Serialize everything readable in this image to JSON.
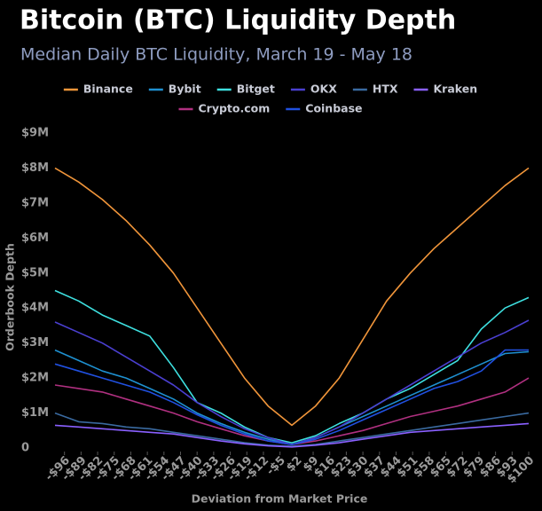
{
  "chart_data": {
    "type": "line",
    "title": "Bitcoin (BTC) Liquidity Depth",
    "subtitle": "Median Daily BTC Liquidity, March 19 - May 18",
    "x_label": "Deviation from Market Price",
    "y_label": "Orderbook Depth",
    "x": [
      -100,
      -90,
      -80,
      -70,
      -60,
      -50,
      -40,
      -30,
      -20,
      -10,
      0,
      10,
      20,
      30,
      40,
      50,
      60,
      70,
      80,
      90,
      100
    ],
    "series": [
      {
        "name": "Binance",
        "color": "#f0953a",
        "values": [
          8.0,
          7.6,
          7.1,
          6.5,
          5.8,
          5.0,
          4.0,
          3.0,
          2.0,
          1.2,
          0.65,
          1.2,
          2.0,
          3.1,
          4.2,
          5.0,
          5.7,
          6.3,
          6.9,
          7.5,
          8.0
        ]
      },
      {
        "name": "Bybit",
        "color": "#1e90d0",
        "values": [
          2.8,
          2.5,
          2.2,
          2.0,
          1.7,
          1.4,
          1.0,
          0.7,
          0.45,
          0.25,
          0.1,
          0.3,
          0.6,
          0.9,
          1.2,
          1.5,
          1.8,
          2.1,
          2.4,
          2.7,
          2.75
        ]
      },
      {
        "name": "Bitget",
        "color": "#3ee0e0",
        "values": [
          4.5,
          4.2,
          3.8,
          3.5,
          3.2,
          2.3,
          1.3,
          1.0,
          0.6,
          0.3,
          0.15,
          0.35,
          0.7,
          1.0,
          1.4,
          1.7,
          2.1,
          2.5,
          3.4,
          4.0,
          4.3
        ]
      },
      {
        "name": "OKX",
        "color": "#4a3fd0",
        "values": [
          3.6,
          3.3,
          3.0,
          2.6,
          2.2,
          1.8,
          1.3,
          0.9,
          0.55,
          0.3,
          0.1,
          0.3,
          0.6,
          1.0,
          1.4,
          1.8,
          2.2,
          2.6,
          3.0,
          3.3,
          3.65
        ]
      },
      {
        "name": "HTX",
        "color": "#3a6aa0",
        "values": [
          1.0,
          0.75,
          0.7,
          0.6,
          0.55,
          0.45,
          0.35,
          0.25,
          0.15,
          0.08,
          0.05,
          0.1,
          0.2,
          0.3,
          0.4,
          0.5,
          0.6,
          0.7,
          0.8,
          0.9,
          1.0
        ]
      },
      {
        "name": "Kraken",
        "color": "#8a60ff",
        "values": [
          0.65,
          0.6,
          0.55,
          0.5,
          0.45,
          0.4,
          0.3,
          0.2,
          0.12,
          0.06,
          0.03,
          0.08,
          0.15,
          0.25,
          0.35,
          0.45,
          0.5,
          0.55,
          0.6,
          0.65,
          0.7
        ]
      },
      {
        "name": "Crypto.com",
        "color": "#b03080",
        "values": [
          1.8,
          1.7,
          1.6,
          1.4,
          1.2,
          1.0,
          0.75,
          0.55,
          0.35,
          0.2,
          0.1,
          0.2,
          0.35,
          0.5,
          0.7,
          0.9,
          1.05,
          1.2,
          1.4,
          1.6,
          2.0
        ]
      },
      {
        "name": "Coinbase",
        "color": "#2050e0",
        "values": [
          2.4,
          2.2,
          2.0,
          1.8,
          1.6,
          1.3,
          0.95,
          0.65,
          0.4,
          0.2,
          0.1,
          0.25,
          0.5,
          0.8,
          1.1,
          1.4,
          1.7,
          1.9,
          2.2,
          2.8,
          2.8
        ]
      }
    ],
    "xlim": [
      -100,
      100
    ],
    "ylim": [
      0,
      9
    ],
    "yticks": [
      0,
      {
        "value": 1,
        "label": "$1M"
      },
      {
        "value": 2,
        "label": "$2M"
      },
      {
        "value": 3,
        "label": "$3M"
      },
      {
        "value": 4,
        "label": "$4M"
      },
      {
        "value": 5,
        "label": "$5M"
      },
      {
        "value": 6,
        "label": "$6M"
      },
      {
        "value": 7,
        "label": "$7M"
      },
      {
        "value": 8,
        "label": "$8M"
      },
      {
        "value": 9,
        "label": "$9M"
      }
    ],
    "xticks": [
      {
        "value": -96,
        "label": "-$96"
      },
      {
        "value": -89,
        "label": "-$89"
      },
      {
        "value": -82,
        "label": "-$82"
      },
      {
        "value": -75,
        "label": "-$75"
      },
      {
        "value": -68,
        "label": "-$68"
      },
      {
        "value": -61,
        "label": "-$61"
      },
      {
        "value": -54,
        "label": "-$54"
      },
      {
        "value": -47,
        "label": "-$47"
      },
      {
        "value": -40,
        "label": "-$40"
      },
      {
        "value": -33,
        "label": "-$33"
      },
      {
        "value": -26,
        "label": "-$26"
      },
      {
        "value": -19,
        "label": "-$19"
      },
      {
        "value": -12,
        "label": "-$12"
      },
      {
        "value": -5,
        "label": "-$5"
      },
      {
        "value": 2,
        "label": "$2"
      },
      {
        "value": 9,
        "label": "$9"
      },
      {
        "value": 16,
        "label": "$16"
      },
      {
        "value": 23,
        "label": "$23"
      },
      {
        "value": 30,
        "label": "$30"
      },
      {
        "value": 37,
        "label": "$37"
      },
      {
        "value": 44,
        "label": "$44"
      },
      {
        "value": 51,
        "label": "$51"
      },
      {
        "value": 58,
        "label": "$58"
      },
      {
        "value": 65,
        "label": "$65"
      },
      {
        "value": 72,
        "label": "$72"
      },
      {
        "value": 79,
        "label": "$79"
      },
      {
        "value": 86,
        "label": "$86"
      },
      {
        "value": 93,
        "label": "$93"
      },
      {
        "value": 100,
        "label": "$100"
      }
    ],
    "grid": false
  }
}
